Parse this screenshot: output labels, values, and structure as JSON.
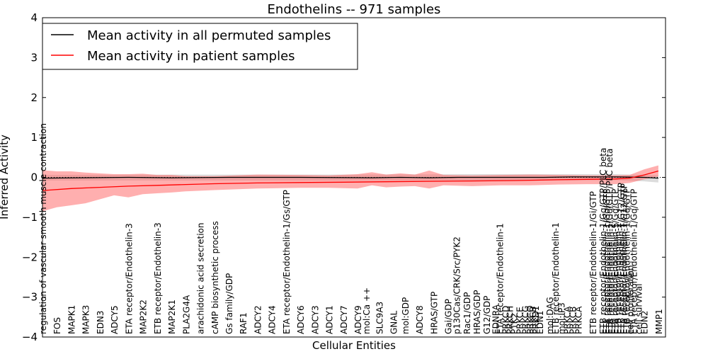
{
  "chart_data": {
    "type": "line",
    "title": "Endothelins -- 971 samples",
    "xlabel": "Cellular Entities",
    "ylabel": "Inferred Activity",
    "ylim": [
      -4,
      4
    ],
    "yticks": [
      -4,
      -3,
      -2,
      -1,
      0,
      1,
      2,
      3,
      4
    ],
    "ytick_labels": [
      "−4",
      "−3",
      "−2",
      "−1",
      "0",
      "1",
      "2",
      "3",
      "4"
    ],
    "legend_position": "top-left",
    "x_range": [
      0,
      43.5
    ],
    "series": [
      {
        "name": "Mean activity in all permuted samples",
        "color": "#000000",
        "points": [
          [
            0,
            -0.02
          ],
          [
            6,
            0.0
          ],
          [
            9,
            -0.01
          ],
          [
            13,
            0.0
          ],
          [
            18,
            0.0
          ],
          [
            23,
            -0.01
          ],
          [
            25,
            0.0
          ],
          [
            27,
            -0.01
          ],
          [
            29,
            0.0
          ],
          [
            32,
            0.0
          ],
          [
            35,
            0.0
          ],
          [
            37,
            0.01
          ],
          [
            40,
            0.01
          ],
          [
            42,
            0.0
          ],
          [
            43,
            -0.02
          ]
        ],
        "band_points": [
          [
            0,
            -0.08,
            0.06
          ],
          [
            10,
            -0.08,
            0.07
          ],
          [
            20,
            -0.08,
            0.07
          ],
          [
            30,
            -0.08,
            0.08
          ],
          [
            40,
            -0.07,
            0.08
          ],
          [
            42,
            -0.1,
            0.06
          ],
          [
            43,
            -0.13,
            0.05
          ]
        ]
      },
      {
        "name": "Mean activity in patient samples",
        "color": "#ff0000",
        "band_color": "#ff6060",
        "points": [
          [
            0,
            -0.33
          ],
          [
            2,
            -0.28
          ],
          [
            4,
            -0.25
          ],
          [
            6,
            -0.22
          ],
          [
            8,
            -0.2
          ],
          [
            10,
            -0.18
          ],
          [
            12,
            -0.16
          ],
          [
            15,
            -0.14
          ],
          [
            18,
            -0.13
          ],
          [
            21,
            -0.12
          ],
          [
            24,
            -0.11
          ],
          [
            27,
            -0.1
          ],
          [
            30,
            -0.09
          ],
          [
            33,
            -0.08
          ],
          [
            36,
            -0.06
          ],
          [
            38,
            -0.05
          ],
          [
            40,
            -0.04
          ],
          [
            41,
            -0.02
          ],
          [
            42,
            0.06
          ],
          [
            43,
            0.16
          ]
        ],
        "band_points": [
          [
            0,
            -0.85,
            0.18
          ],
          [
            1,
            -0.75,
            0.15
          ],
          [
            2,
            -0.7,
            0.15
          ],
          [
            3,
            -0.65,
            0.12
          ],
          [
            4,
            -0.55,
            0.1
          ],
          [
            5,
            -0.45,
            0.08
          ],
          [
            6,
            -0.5,
            0.08
          ],
          [
            7,
            -0.42,
            0.09
          ],
          [
            8,
            -0.4,
            0.06
          ],
          [
            9,
            -0.38,
            0.06
          ],
          [
            10,
            -0.35,
            0.03
          ],
          [
            12,
            -0.32,
            0.03
          ],
          [
            15,
            -0.28,
            0.07
          ],
          [
            18,
            -0.26,
            0.06
          ],
          [
            20,
            -0.26,
            0.05
          ],
          [
            22,
            -0.28,
            0.08
          ],
          [
            23,
            -0.2,
            0.13
          ],
          [
            24,
            -0.25,
            0.07
          ],
          [
            25,
            -0.23,
            0.1
          ],
          [
            26,
            -0.22,
            0.07
          ],
          [
            27,
            -0.28,
            0.17
          ],
          [
            28,
            -0.2,
            0.06
          ],
          [
            30,
            -0.22,
            0.05
          ],
          [
            32,
            -0.2,
            0.06
          ],
          [
            34,
            -0.2,
            0.07
          ],
          [
            36,
            -0.18,
            0.06
          ],
          [
            38,
            -0.17,
            0.05
          ],
          [
            40,
            -0.17,
            0.05
          ],
          [
            41,
            -0.14,
            0.06
          ],
          [
            42,
            -0.05,
            0.2
          ],
          [
            43,
            0.02,
            0.3
          ]
        ]
      }
    ],
    "dotted_zero_line": true,
    "entities": [
      {
        "x": 0,
        "label": "regulation of vascular smooth muscle contraction"
      },
      {
        "x": 1,
        "label": "FOS"
      },
      {
        "x": 2,
        "label": "MAPK1"
      },
      {
        "x": 3,
        "label": "MAPK3"
      },
      {
        "x": 4,
        "label": "EDN3"
      },
      {
        "x": 5,
        "label": "ADCY5"
      },
      {
        "x": 6,
        "label": "ETA receptor/Endothelin-3"
      },
      {
        "x": 7,
        "label": "MAP2K2"
      },
      {
        "x": 8,
        "label": "ETB receptor/Endothelin-3"
      },
      {
        "x": 9,
        "label": "MAP2K1"
      },
      {
        "x": 10,
        "label": "PLA2G4A"
      },
      {
        "x": 11,
        "label": "arachidonic acid secretion"
      },
      {
        "x": 12,
        "label": "cAMP biosynthetic process"
      },
      {
        "x": 13,
        "label": "Gs family/GDP"
      },
      {
        "x": 14,
        "label": "RAF1"
      },
      {
        "x": 15,
        "label": "ADCY2"
      },
      {
        "x": 16,
        "label": "ADCY4"
      },
      {
        "x": 17,
        "label": "ETA receptor/Endothelin-1/Gs/GTP"
      },
      {
        "x": 18,
        "label": "ADCY6"
      },
      {
        "x": 19,
        "label": "ADCY3"
      },
      {
        "x": 20,
        "label": "ADCY1"
      },
      {
        "x": 21,
        "label": "ADCY7"
      },
      {
        "x": 22,
        "label": "ADCY9"
      },
      {
        "x": 22.6,
        "label": "mol:Ca ++"
      },
      {
        "x": 23.5,
        "label": "SLC9A3"
      },
      {
        "x": 24.5,
        "label": "GNAL"
      },
      {
        "x": 25.3,
        "label": "mol:GDP"
      },
      {
        "x": 26.3,
        "label": "ADCY8"
      },
      {
        "x": 27.3,
        "label": "HRAS/GTP"
      },
      {
        "x": 28.3,
        "label": "Gai/GDP"
      },
      {
        "x": 28.9,
        "label": "p130Cas/CRK/Src/PYK2"
      },
      {
        "x": 29.6,
        "label": "Rac1/GDP"
      },
      {
        "x": 30.3,
        "label": "HRAS/GDP"
      },
      {
        "x": 31.0,
        "label": "G12/GDP"
      },
      {
        "x": 31.6,
        "label": "EDNRA"
      },
      {
        "x": 31.9,
        "label": "ETA receptor/Endothelin-1"
      },
      {
        "x": 32.3,
        "label": "PRKCD"
      },
      {
        "x": 32.6,
        "label": "PRKCH"
      },
      {
        "x": 32.9,
        "label": "PTK2"
      },
      {
        "x": 33.3,
        "label": "PRKCE"
      },
      {
        "x": 33.7,
        "label": "PRKCG"
      },
      {
        "x": 34.0,
        "label": "PRKCQ"
      },
      {
        "x": 34.2,
        "label": "PRKCB"
      },
      {
        "x": 34.4,
        "label": "PRKD1"
      },
      {
        "x": 34.7,
        "label": "EDN1"
      },
      {
        "x": 35.4,
        "label": "mol:DAG"
      },
      {
        "x": 35.8,
        "label": "ETB receptor/Endothelin-1"
      },
      {
        "x": 36.2,
        "label": "mol:IP3"
      },
      {
        "x": 36.6,
        "label": "PRKCA"
      },
      {
        "x": 37.0,
        "label": "PRKCB"
      },
      {
        "x": 37.4,
        "label": "PRKCA"
      },
      {
        "x": 38.4,
        "label": "ETB receptor/Endothelin-1/Gi/GTP"
      },
      {
        "x": 39.1,
        "label": "ETB receptor/Endothelin-1/Gq/GTP/PLC beta"
      },
      {
        "x": 39.35,
        "label": "ETA receptor/Endothelin-1/Gq/GTP"
      },
      {
        "x": 39.55,
        "label": "ETA receptor/Endothelin-1/Gq/GTP/PLC beta"
      },
      {
        "x": 39.7,
        "label": "ETA receptor/Endothelin-2"
      },
      {
        "x": 39.95,
        "label": "ETA receptor/Endothelin-1/Gq/GTP"
      },
      {
        "x": 40.15,
        "label": "ETB receptor/Endothelin-2"
      },
      {
        "x": 40.35,
        "label": "ETB receptor/Endothelin-1/G12/GTP"
      },
      {
        "x": 40.55,
        "label": "ETA receptor/Endothelin-1/G12/GTP"
      },
      {
        "x": 40.75,
        "label": "ETB receptor/Endothelin-1/Gq/GTP"
      },
      {
        "x": 41.0,
        "label": "cell proliferation"
      },
      {
        "x": 41.25,
        "label": "ETA receptor/Endothelin-1/Gq/GTP"
      },
      {
        "x": 41.6,
        "label": "cell survival"
      },
      {
        "x": 42.0,
        "label": "EDN2"
      },
      {
        "x": 43.0,
        "label": "MMP1"
      }
    ]
  }
}
